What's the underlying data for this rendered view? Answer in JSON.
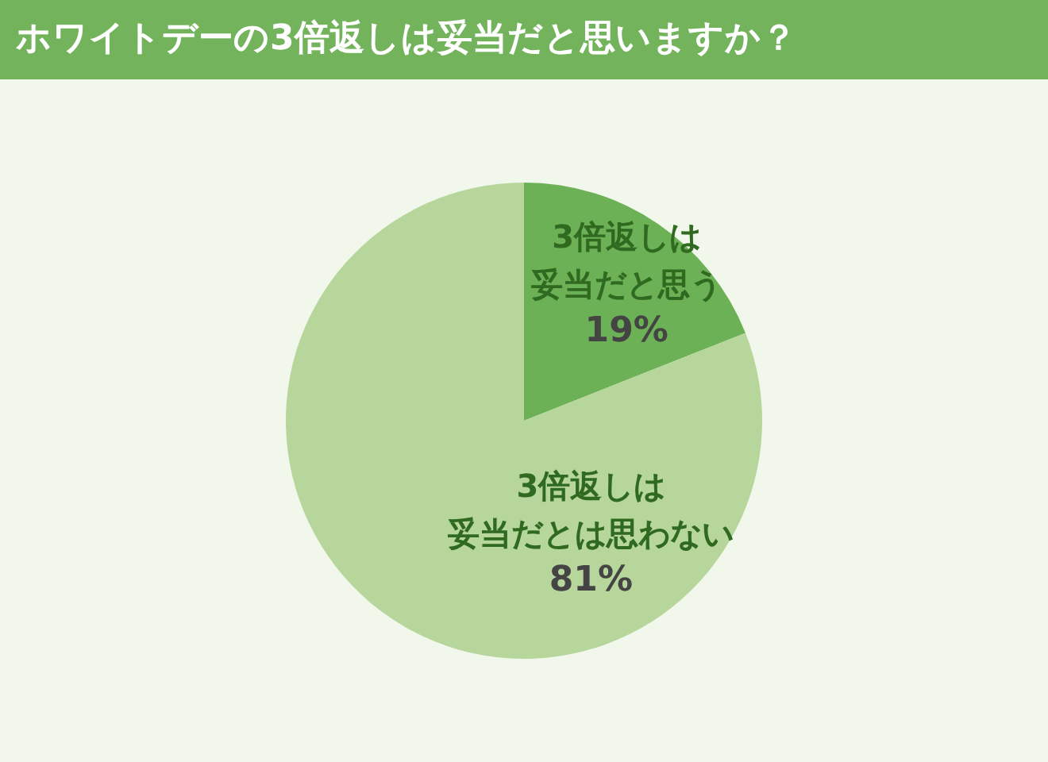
{
  "chart_data": {
    "type": "pie",
    "title": "ホワイトデーの3倍返しは妥当だと思いますか？",
    "categories": [
      "3倍返しは妥当だと思う",
      "3倍返しは妥当だとは思わない"
    ],
    "values": [
      19,
      81
    ],
    "colors": [
      "#6cb155",
      "#b6d69c"
    ],
    "value_labels": [
      "19%",
      "81%"
    ]
  }
}
